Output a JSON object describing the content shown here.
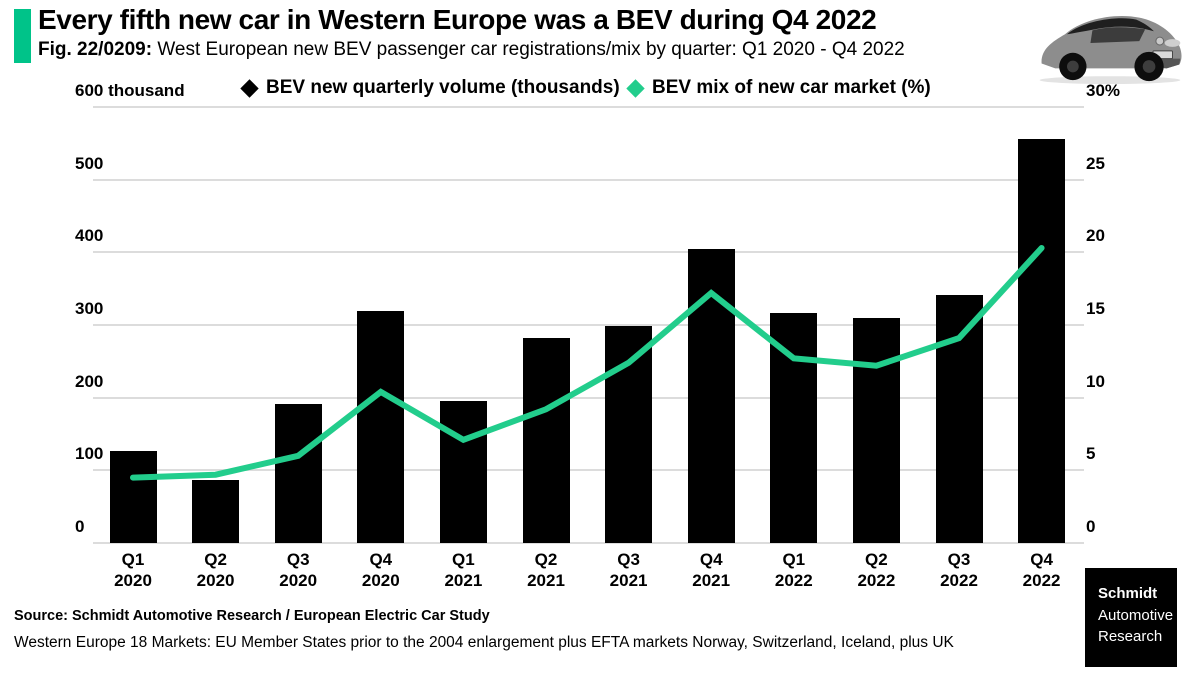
{
  "header": {
    "title": "Every fifth new car in Western Europe was a BEV during Q4 2022",
    "fig_label": "Fig. 22/0209:",
    "subtitle": " West European new BEV passenger car registrations/mix by quarter: Q1 2020 - Q4 2022"
  },
  "legend": {
    "volume_label": "BEV new quarterly volume (thousands)",
    "mix_label": "BEV mix of new car market (%)"
  },
  "chart_data": {
    "type": "bar",
    "title": "West European new BEV passenger car registrations/mix by quarter: Q1 2020 - Q4 2022",
    "categories": [
      [
        "Q1",
        "2020"
      ],
      [
        "Q2",
        "2020"
      ],
      [
        "Q3",
        "2020"
      ],
      [
        "Q4",
        "2020"
      ],
      [
        "Q1",
        "2021"
      ],
      [
        "Q2",
        "2021"
      ],
      [
        "Q3",
        "2021"
      ],
      [
        "Q4",
        "2021"
      ],
      [
        "Q1",
        "2022"
      ],
      [
        "Q2",
        "2022"
      ],
      [
        "Q3",
        "2022"
      ],
      [
        "Q4",
        "2022"
      ]
    ],
    "series": [
      {
        "name": "BEV new quarterly volume (thousands)",
        "type": "bar",
        "axis": "left",
        "color": "#000000",
        "values": [
          126,
          87,
          191,
          319,
          196,
          282,
          298,
          405,
          316,
          310,
          341,
          556
        ]
      },
      {
        "name": "BEV mix of new car market (%)",
        "type": "line",
        "axis": "right",
        "color": "#22cd8c",
        "values": [
          4.5,
          4.7,
          6.0,
          10.4,
          7.1,
          9.2,
          12.4,
          17.2,
          12.7,
          12.2,
          14.1,
          20.3
        ]
      }
    ],
    "left_axis": {
      "label": "600 thousand",
      "min": 0,
      "max": 600,
      "tick_interval": 100,
      "ticks": [
        "600 thousand",
        "500",
        "400",
        "300",
        "200",
        "100",
        "0"
      ]
    },
    "right_axis": {
      "label": "30%",
      "min": 0,
      "max": 30,
      "tick_interval": 5,
      "ticks": [
        "30%",
        "25",
        "20",
        "15",
        "10",
        "5",
        "0"
      ]
    },
    "grid": true,
    "legend_position": "top"
  },
  "footer": {
    "source": "Source: Schmidt Automotive Research / European Electric Car Study",
    "markets": "Western Europe 18 Markets: EU Member States prior to the 2004 enlargement plus EFTA markets Norway, Switzerland, Iceland, plus UK"
  },
  "logo": {
    "line1": "Schmidt",
    "line2": "Automotive",
    "line3": "Research"
  },
  "colors": {
    "accent": "#00c389",
    "line": "#22cd8c",
    "bar": "#000000",
    "grid": "#dcdcdc",
    "legend_volume_marker": "#000000",
    "legend_mix_marker": "#22cd8c"
  }
}
